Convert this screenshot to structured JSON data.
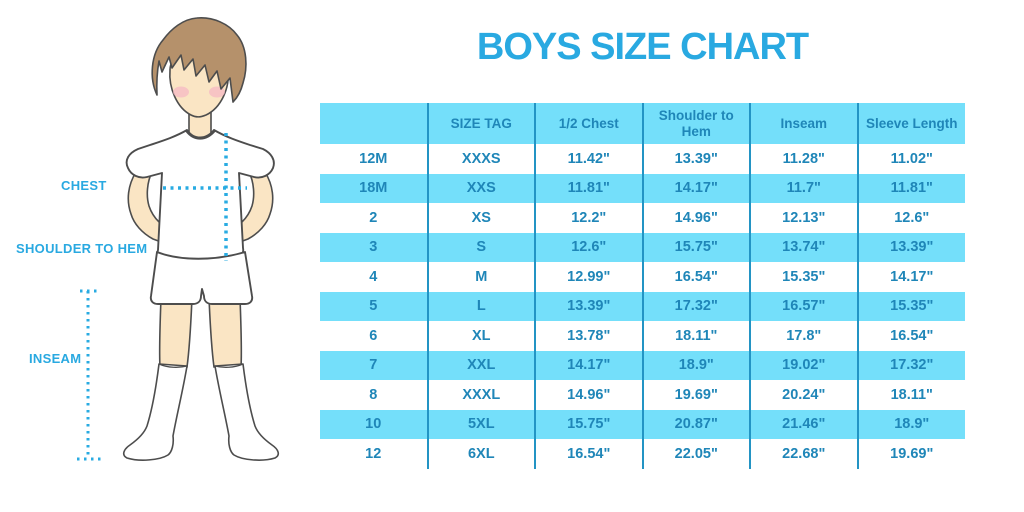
{
  "title": "BOYS SIZE CHART",
  "colors": {
    "title_blue": "#29A9E1",
    "table_text_blue": "#1F86B8",
    "stripe_blue": "#74DFFA",
    "column_line_blue": "#2394C4",
    "dotted_line_blue": "#29ABE2",
    "skin": "#FAE5C4",
    "hair": "#B5916B",
    "blush": "#F5B7C4",
    "outline": "#4D4D4D"
  },
  "figure": {
    "labels": {
      "chest": "CHEST",
      "shoulder_to_hem": "SHOULDER TO HEM",
      "inseam": "INSEAM"
    }
  },
  "chart_data": {
    "type": "table",
    "title": "BOYS SIZE CHART",
    "columns": [
      "",
      "SIZE TAG",
      "1/2 Chest",
      "Shoulder to Hem",
      "Inseam",
      "Sleeve Length"
    ],
    "rows": [
      [
        "12M",
        "XXXS",
        "11.42\"",
        "13.39\"",
        "11.28\"",
        "11.02\""
      ],
      [
        "18M",
        "XXS",
        "11.81\"",
        "14.17\"",
        "11.7\"",
        "11.81\""
      ],
      [
        "2",
        "XS",
        "12.2\"",
        "14.96\"",
        "12.13\"",
        "12.6\""
      ],
      [
        "3",
        "S",
        "12.6\"",
        "15.75\"",
        "13.74\"",
        "13.39\""
      ],
      [
        "4",
        "M",
        "12.99\"",
        "16.54\"",
        "15.35\"",
        "14.17\""
      ],
      [
        "5",
        "L",
        "13.39\"",
        "17.32\"",
        "16.57\"",
        "15.35\""
      ],
      [
        "6",
        "XL",
        "13.78\"",
        "18.11\"",
        "17.8\"",
        "16.54\""
      ],
      [
        "7",
        "XXL",
        "14.17\"",
        "18.9\"",
        "19.02\"",
        "17.32\""
      ],
      [
        "8",
        "XXXL",
        "14.96\"",
        "19.69\"",
        "20.24\"",
        "18.11\""
      ],
      [
        "10",
        "5XL",
        "15.75\"",
        "20.87\"",
        "21.46\"",
        "18.9\""
      ],
      [
        "12",
        "6XL",
        "16.54\"",
        "22.05\"",
        "22.68\"",
        "19.69\""
      ]
    ]
  }
}
